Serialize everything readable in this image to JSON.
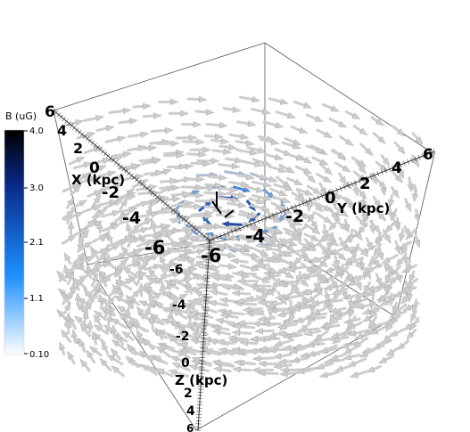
{
  "chart_data": {
    "type": "vector-field-3d",
    "title": "",
    "colorbar": {
      "title": "B (uG)",
      "min": 0.1,
      "max": 4.0,
      "tick_labels": [
        "4.0",
        "3.0",
        "2.1",
        "1.1",
        "0.10"
      ],
      "colors": [
        "#ffffff",
        "#1e90ff",
        "#0a2a8a",
        "#000000"
      ]
    },
    "axes": {
      "x": {
        "label": "X (kpc)",
        "ticks": [
          "6",
          "4",
          "2",
          "0",
          "-2",
          "-4",
          "-6"
        ],
        "range": [
          -6,
          6
        ]
      },
      "y": {
        "label": "Y (kpc)",
        "ticks": [
          "-6",
          "-4",
          "-2",
          "0",
          "2",
          "4",
          "6"
        ],
        "range": [
          -6,
          6
        ]
      },
      "z": {
        "label": "Z (kpc)",
        "ticks": [
          "-6",
          "-4",
          "-2",
          "0",
          "2",
          "4",
          "6"
        ],
        "range": [
          -6,
          6
        ]
      }
    },
    "field": {
      "description_type": "spiral",
      "arrow_color_low": "#c8c8c8",
      "arrow_color_high": "#0a2a8a"
    }
  }
}
